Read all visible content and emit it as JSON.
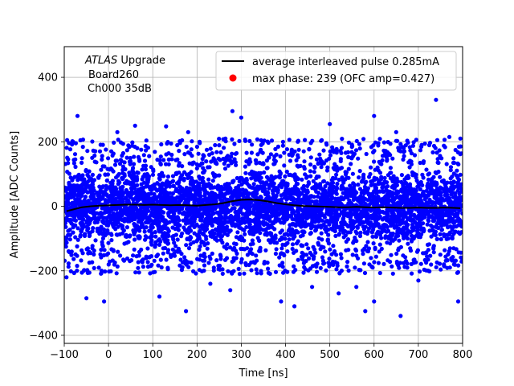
{
  "chart_data": {
    "type": "scatter",
    "xlabel": "Time [ns]",
    "ylabel": "Amplitude [ADC Counts]",
    "xlim": [
      -100,
      800
    ],
    "ylim": [
      -425,
      495
    ],
    "xticks": [
      -100,
      0,
      100,
      200,
      300,
      400,
      500,
      600,
      700,
      800
    ],
    "yticks": [
      -400,
      -200,
      0,
      200,
      400
    ],
    "grid": true,
    "legend_position": "top-right",
    "annotation": {
      "italic_part": "ATLAS",
      "line1_rest": " Upgrade",
      "line2": "Board260",
      "line3": "Ch000 35dB"
    },
    "series": [
      {
        "name": "average interleaved pulse 0.285mA",
        "type": "line",
        "color": "#000000",
        "x": [
          -95,
          -80,
          -60,
          -40,
          -20,
          0,
          20,
          40,
          60,
          80,
          100,
          120,
          140,
          160,
          180,
          200,
          220,
          240,
          260,
          280,
          300,
          320,
          340,
          360,
          380,
          400,
          420,
          440,
          460,
          480,
          500,
          520,
          540,
          560,
          580,
          600,
          620,
          640,
          660,
          680,
          700,
          720,
          740,
          760,
          780,
          795
        ],
        "y": [
          -15,
          -10,
          -3,
          0,
          2,
          3,
          4,
          5,
          5,
          4,
          5,
          4,
          3,
          4,
          3,
          2,
          4,
          6,
          10,
          16,
          20,
          21,
          19,
          15,
          10,
          6,
          3,
          1,
          0,
          -1,
          -2,
          -3,
          -3,
          -2,
          -3,
          -4,
          -3,
          -4,
          -5,
          -5,
          -4,
          -5,
          -5,
          -4,
          -5,
          -6
        ]
      },
      {
        "name": "max phase: 239 (OFC amp=0.427)",
        "type": "scatter",
        "color": "#0000ff",
        "marker_color_legend": "#ff0000",
        "noise_band": [
          -130,
          130
        ],
        "outliers": [
          {
            "x": -80,
            "y": 200
          },
          {
            "x": -70,
            "y": 280
          },
          {
            "x": -95,
            "y": -220
          },
          {
            "x": -50,
            "y": -285
          },
          {
            "x": -10,
            "y": -295
          },
          {
            "x": 60,
            "y": 250
          },
          {
            "x": 115,
            "y": -280
          },
          {
            "x": 130,
            "y": 248
          },
          {
            "x": 175,
            "y": -325
          },
          {
            "x": 180,
            "y": 230
          },
          {
            "x": 275,
            "y": -260
          },
          {
            "x": 280,
            "y": 295
          },
          {
            "x": 300,
            "y": 275
          },
          {
            "x": 390,
            "y": -295
          },
          {
            "x": 420,
            "y": -310
          },
          {
            "x": 500,
            "y": 255
          },
          {
            "x": 560,
            "y": -250
          },
          {
            "x": 580,
            "y": -325
          },
          {
            "x": 600,
            "y": -295
          },
          {
            "x": 600,
            "y": 280
          },
          {
            "x": 660,
            "y": -340
          },
          {
            "x": 740,
            "y": 330
          },
          {
            "x": 770,
            "y": 215
          },
          {
            "x": 790,
            "y": -295
          },
          {
            "x": 795,
            "y": 210
          },
          {
            "x": 345,
            "y": 190
          },
          {
            "x": 430,
            "y": 175
          },
          {
            "x": 460,
            "y": -250
          },
          {
            "x": 20,
            "y": 230
          },
          {
            "x": 230,
            "y": -240
          },
          {
            "x": 520,
            "y": -270
          },
          {
            "x": 700,
            "y": -230
          },
          {
            "x": 650,
            "y": 230
          }
        ]
      }
    ]
  }
}
